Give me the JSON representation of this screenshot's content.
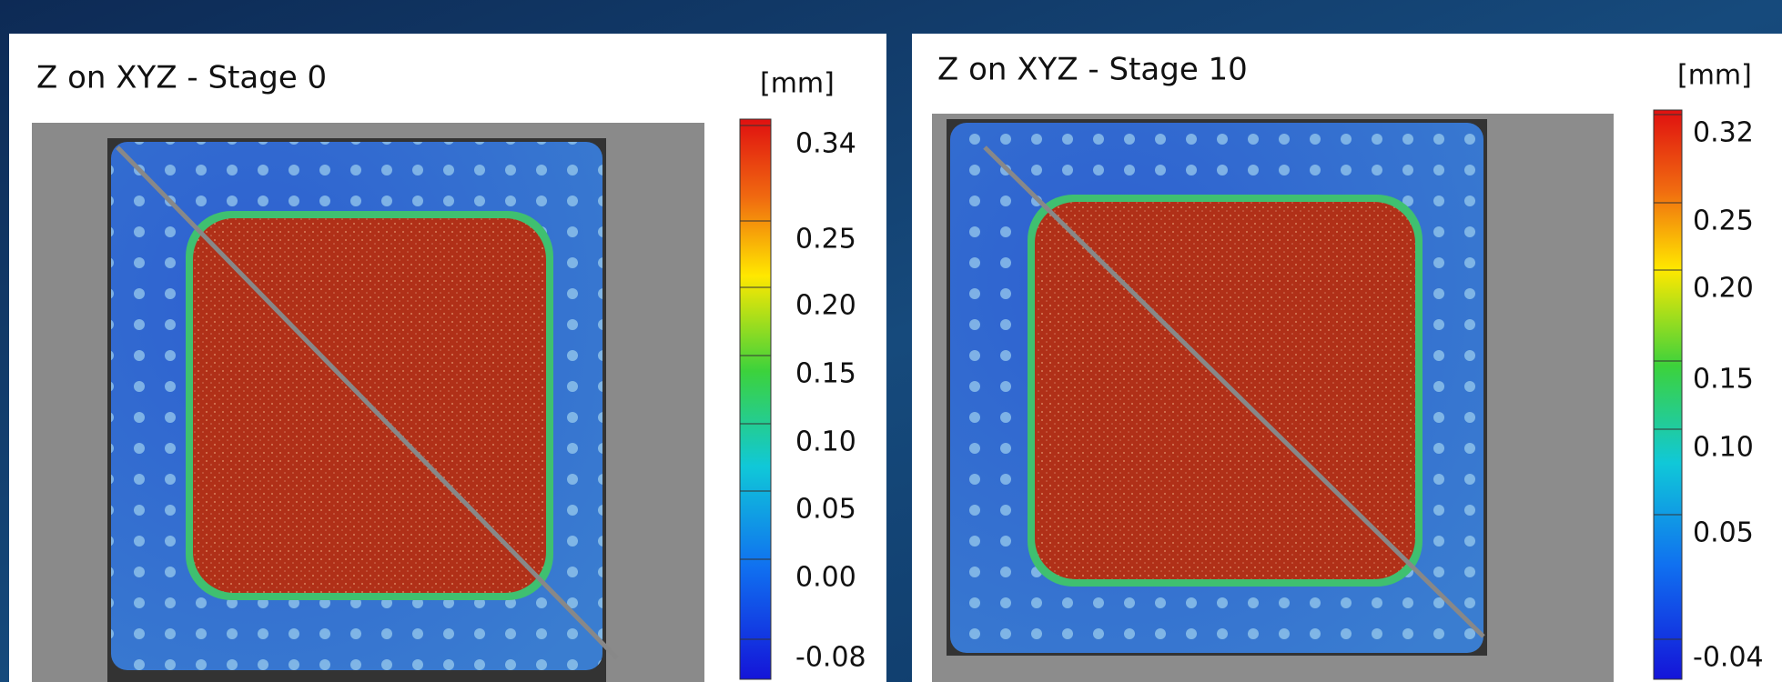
{
  "panels": [
    {
      "title": "Z on XYZ - Stage 0",
      "unit": "[mm]",
      "scale_labels": [
        "0.34",
        "0.25",
        "0.20",
        "0.15",
        "0.10",
        "0.05",
        "0.00",
        "-0.08"
      ]
    },
    {
      "title": "Z on XYZ - Stage 10",
      "unit": "[mm]",
      "scale_labels": [
        "0.32",
        "0.25",
        "0.20",
        "0.15",
        "0.10",
        "0.05",
        "-0.04"
      ]
    }
  ]
}
